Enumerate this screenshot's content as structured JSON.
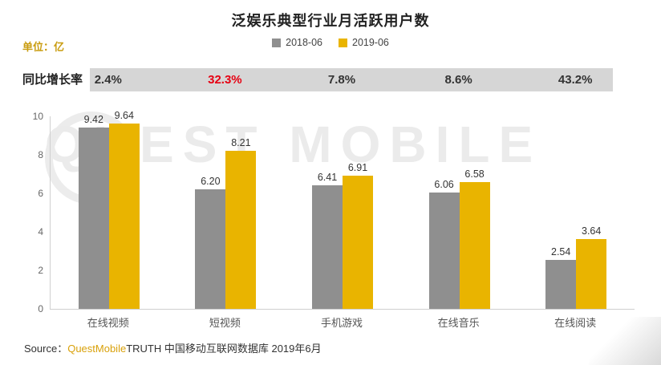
{
  "title": "泛娱乐典型行业月活跃用户数",
  "unit_label": "单位：亿",
  "legend": [
    {
      "label": "2018-06",
      "color": "#8f8f8f"
    },
    {
      "label": "2019-06",
      "color": "#e9b400"
    }
  ],
  "growth": {
    "label": "同比增长率",
    "values": [
      "2.4%",
      "32.3%",
      "7.8%",
      "8.6%",
      "43.2%"
    ],
    "highlight_index": 1,
    "highlight_color": "#e60012",
    "band_color": "#d6d6d6"
  },
  "watermark": "QUEST MOBILE",
  "source": {
    "prefix": "Source：",
    "brand": "QuestMobile",
    "suffix": "TRUTH 中国移动互联网数据库 2019年6月"
  },
  "colors": {
    "bar_gray": "#8f8f8f",
    "bar_yellow": "#e9b400",
    "accent_gold": "#c99c10",
    "growth_highlight": "#e60012"
  },
  "chart_data": {
    "type": "bar",
    "title": "泛娱乐典型行业月活跃用户数",
    "unit": "亿",
    "categories": [
      "在线视频",
      "短视频",
      "手机游戏",
      "在线音乐",
      "在线阅读"
    ],
    "series": [
      {
        "name": "2018-06",
        "color": "#8f8f8f",
        "values": [
          9.42,
          6.2,
          6.41,
          6.06,
          2.54
        ]
      },
      {
        "name": "2019-06",
        "color": "#e9b400",
        "values": [
          9.64,
          8.21,
          6.91,
          6.58,
          3.64
        ]
      }
    ],
    "yoy_growth_by_category": [
      "2.4%",
      "32.3%",
      "7.8%",
      "8.6%",
      "43.2%"
    ],
    "ylim": [
      0,
      10
    ],
    "yticks": [
      0,
      2,
      4,
      6,
      8,
      10
    ],
    "legend_position": "top-center",
    "grid": false
  }
}
